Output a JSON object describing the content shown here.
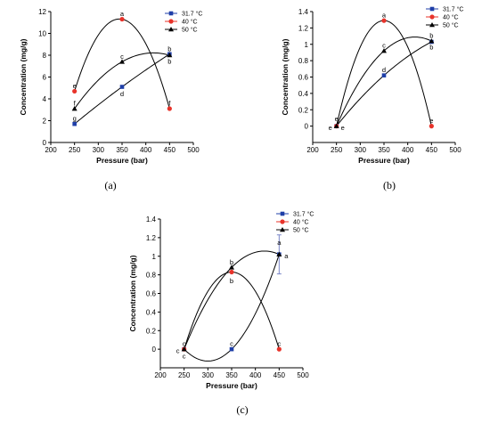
{
  "chart_data": [
    {
      "type": "scatter",
      "panel": "(a)",
      "xlabel": "Pressure (bar)",
      "ylabel": "Concentration (mg/g)",
      "xlim": [
        200,
        500
      ],
      "ylim": [
        0,
        12
      ],
      "xticks": [
        200,
        250,
        300,
        350,
        400,
        450,
        500
      ],
      "yticks": [
        0,
        2,
        4,
        6,
        8,
        10,
        12
      ],
      "legend_position": "top-right",
      "series": [
        {
          "name": "31.7 °C",
          "color": "#1f3fa8",
          "marker": "square",
          "x": [
            250,
            350,
            450
          ],
          "y": [
            1.7,
            5.1,
            8.1
          ],
          "labels": [
            "g",
            "d",
            "b"
          ]
        },
        {
          "name": "40 °C",
          "color": "#e8332a",
          "marker": "circle",
          "x": [
            250,
            350,
            450
          ],
          "y": [
            4.7,
            11.3,
            3.1
          ],
          "labels": [
            "e",
            "a",
            "f"
          ]
        },
        {
          "name": "50 °C",
          "color": "#000000",
          "marker": "triangle",
          "x": [
            250,
            350,
            450
          ],
          "y": [
            3.1,
            7.4,
            8.0
          ],
          "labels": [
            "f",
            "c",
            "b"
          ]
        }
      ]
    },
    {
      "type": "scatter",
      "panel": "(b)",
      "xlabel": "Pressure (bar)",
      "ylabel": "Concentration (mg/g)",
      "xlim": [
        200,
        500
      ],
      "ylim": [
        -0.2,
        1.4
      ],
      "xticks": [
        200,
        250,
        300,
        350,
        400,
        450,
        500
      ],
      "yticks": [
        0,
        0.2,
        0.4,
        0.6,
        0.8,
        1,
        1.2,
        1.4
      ],
      "legend_position": "top-right",
      "series": [
        {
          "name": "31.7 °C",
          "color": "#1f3fa8",
          "marker": "square",
          "x": [
            250,
            350,
            450
          ],
          "y": [
            0,
            0.62,
            1.03
          ],
          "labels": [
            "e",
            "d",
            "b"
          ]
        },
        {
          "name": "40 °C",
          "color": "#e8332a",
          "marker": "circle",
          "x": [
            250,
            350,
            450
          ],
          "y": [
            0,
            1.29,
            0
          ],
          "labels": [
            "e",
            "a",
            "e"
          ]
        },
        {
          "name": "50 °C",
          "color": "#000000",
          "marker": "triangle",
          "x": [
            250,
            350,
            450
          ],
          "y": [
            0,
            0.92,
            1.04
          ],
          "labels": [
            "e",
            "c",
            "b"
          ]
        }
      ]
    },
    {
      "type": "scatter",
      "panel": "(c)",
      "xlabel": "Pressure (bar)",
      "ylabel": "Concentration (mg/g)",
      "xlim": [
        200,
        500
      ],
      "ylim": [
        -0.2,
        1.4
      ],
      "xticks": [
        200,
        250,
        300,
        350,
        400,
        450,
        500
      ],
      "yticks": [
        0,
        0.2,
        0.4,
        0.6,
        0.8,
        1,
        1.2,
        1.4
      ],
      "legend_position": "top-right",
      "series": [
        {
          "name": "31.7 °C",
          "color": "#1f3fa8",
          "marker": "square",
          "x": [
            250,
            350,
            450
          ],
          "y": [
            0,
            0,
            1.02
          ],
          "labels": [
            "c",
            "c",
            "a"
          ]
        },
        {
          "name": "40 °C",
          "color": "#e8332a",
          "marker": "circle",
          "x": [
            250,
            350,
            450
          ],
          "y": [
            0,
            0.83,
            0
          ],
          "labels": [
            "c",
            "b",
            "c"
          ]
        },
        {
          "name": "50 °C",
          "color": "#000000",
          "marker": "triangle",
          "x": [
            250,
            350,
            450
          ],
          "y": [
            0,
            0.88,
            1.02
          ],
          "labels": [
            "c",
            "b",
            "a"
          ]
        }
      ],
      "error_bars": [
        {
          "series": "31.7 °C",
          "x": 450,
          "y": 1.02,
          "err": 0.21
        }
      ]
    }
  ]
}
